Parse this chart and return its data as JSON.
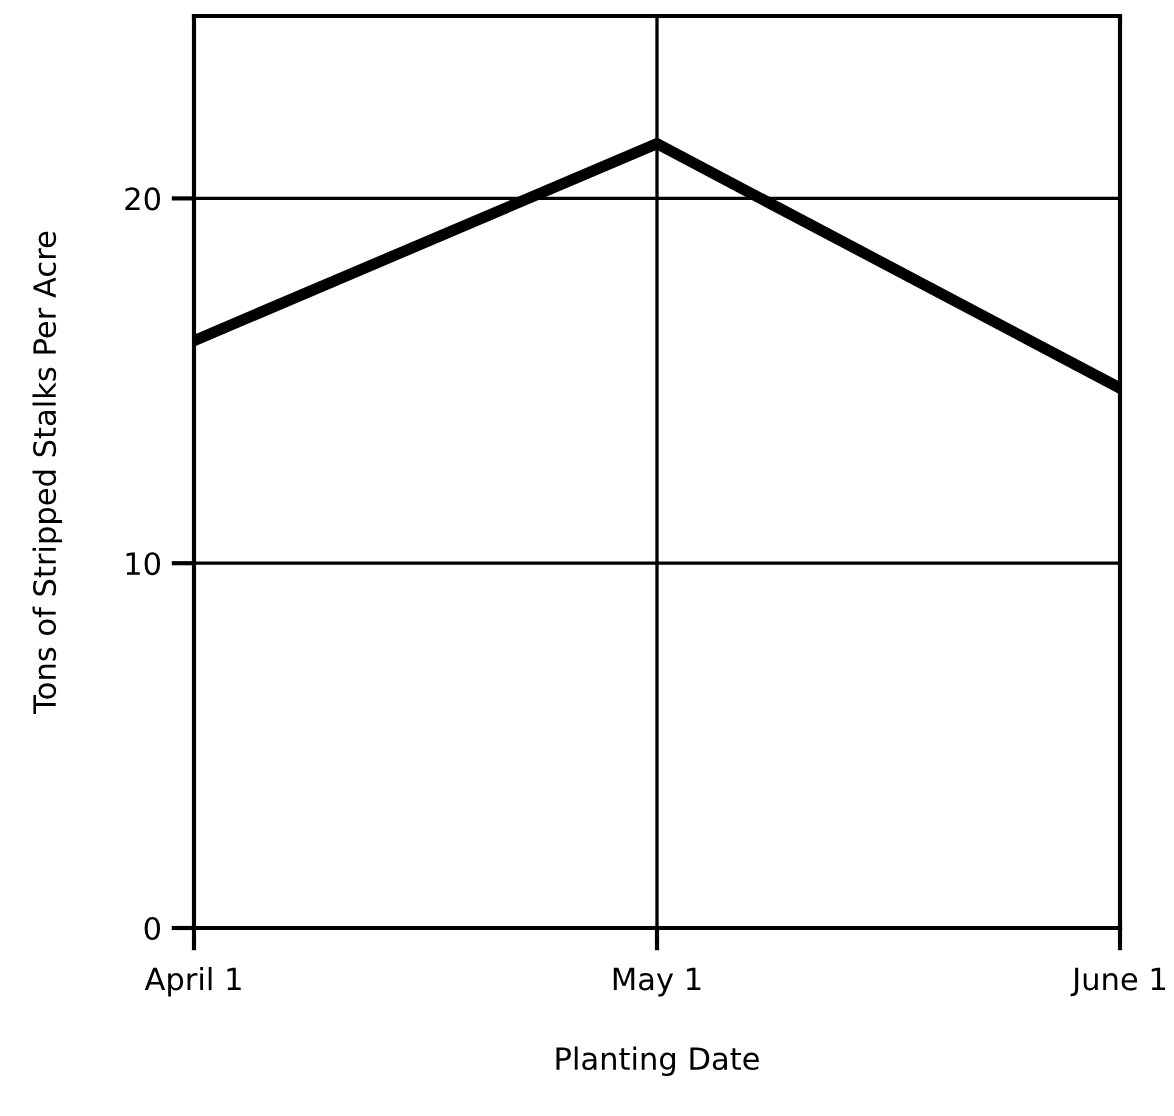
{
  "chart_data": {
    "type": "line",
    "xlabel": "Planting Date",
    "ylabel": "Tons of Stripped Stalks Per Acre",
    "categories": [
      "April 1",
      "May 1",
      "June 1"
    ],
    "series": [
      {
        "color": "#000000",
        "values": [
          16.1,
          21.5,
          14.8
        ]
      }
    ],
    "ylim": [
      0,
      25
    ],
    "yticks": [
      0,
      10,
      20
    ],
    "grid": true,
    "marker": "none",
    "line_style": "solid"
  }
}
